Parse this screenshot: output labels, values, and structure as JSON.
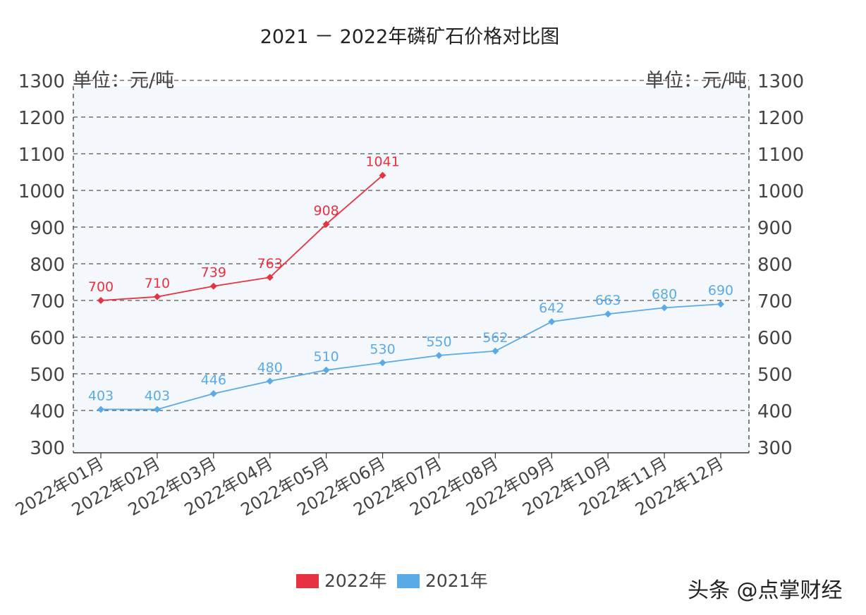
{
  "chart_data": {
    "type": "line",
    "title": "2021 － 2022年磷矿石价格对比图",
    "ylabel_left": "单位：元/吨",
    "ylabel_right": "单位：元/吨",
    "ylim": [
      300,
      1300
    ],
    "yticks": [
      300,
      400,
      500,
      600,
      700,
      800,
      900,
      1000,
      1100,
      1200,
      1300
    ],
    "grid": true,
    "legend_position": "bottom",
    "categories": [
      "2022年01月",
      "2022年02月",
      "2022年03月",
      "2022年04月",
      "2022年05月",
      "2022年06月",
      "2022年07月",
      "2022年08月",
      "2022年09月",
      "2022年10月",
      "2022年11月",
      "2022年12月"
    ],
    "series": [
      {
        "name": "2022年",
        "color": "#e8323f",
        "values": [
          700,
          710,
          739,
          763,
          908,
          1041,
          null,
          null,
          null,
          null,
          null,
          null
        ]
      },
      {
        "name": "2021年",
        "color": "#5aaae8",
        "values": [
          403,
          403,
          446,
          480,
          510,
          530,
          550,
          562,
          642,
          663,
          680,
          690
        ]
      }
    ]
  },
  "watermark": "头条 @点掌财经"
}
